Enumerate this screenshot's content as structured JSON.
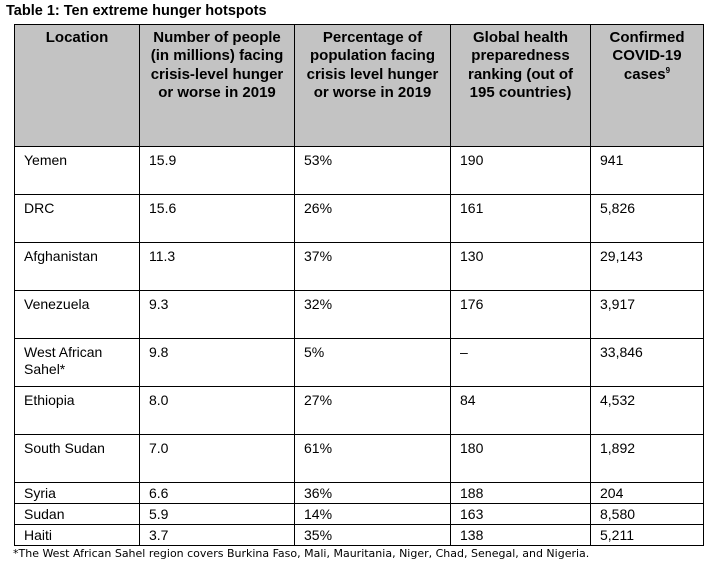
{
  "caption": "Table 1: Ten extreme hunger hotspots",
  "headers": {
    "location": "Location",
    "people": "Number of people (in millions) facing crisis-level hunger or worse in 2019",
    "percentage": "Percentage of population facing crisis level hunger or worse in 2019",
    "ranking": "Global health preparedness ranking (out of 195 countries)",
    "covid": "Confirmed COVID-19 cases",
    "covid_footnote_ref": "9"
  },
  "rows": [
    {
      "location": "Yemen",
      "people": "15.9",
      "percentage": "53%",
      "ranking": "190",
      "covid": "941"
    },
    {
      "location": "DRC",
      "people": "15.6",
      "percentage": "26%",
      "ranking": "161",
      "covid": "5,826"
    },
    {
      "location": "Afghanistan",
      "people": "11.3",
      "percentage": "37%",
      "ranking": "130",
      "covid": "29,143"
    },
    {
      "location": "Venezuela",
      "people": "9.3",
      "percentage": "32%",
      "ranking": "176",
      "covid": "3,917"
    },
    {
      "location": "West African Sahel*",
      "people": "9.8",
      "percentage": "5%",
      "ranking": "–",
      "covid": "33,846"
    },
    {
      "location": "Ethiopia",
      "people": "8.0",
      "percentage": "27%",
      "ranking": "84",
      "covid": "4,532"
    },
    {
      "location": "South Sudan",
      "people": "7.0",
      "percentage": "61%",
      "ranking": "180",
      "covid": "1,892"
    },
    {
      "location": "Syria",
      "people": "6.6",
      "percentage": "36%",
      "ranking": "188",
      "covid": "204"
    },
    {
      "location": "Sudan",
      "people": "5.9",
      "percentage": "14%",
      "ranking": "163",
      "covid": "8,580"
    },
    {
      "location": "Haiti",
      "people": "3.7",
      "percentage": "35%",
      "ranking": "138",
      "covid": "5,211"
    }
  ],
  "footnote": "*The West African Sahel region covers Burkina Faso, Mali, Mauritania, Niger, Chad, Senegal, and Nigeria.",
  "colors": {
    "header_background": "#c3c3c3",
    "border": "#000000",
    "text": "#000000"
  }
}
